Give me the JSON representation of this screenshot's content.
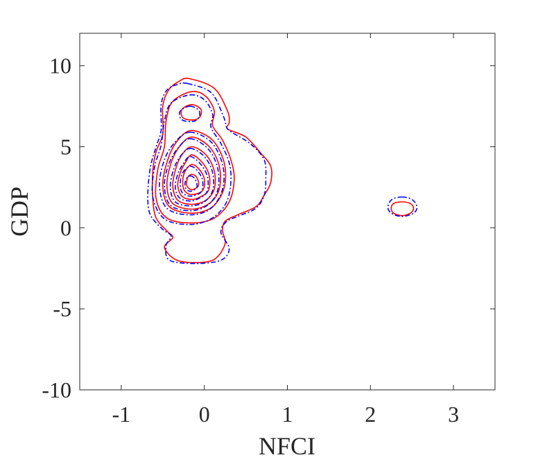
{
  "chart_data": {
    "type": "contour",
    "xlabel": "NFCI",
    "ylabel": "GDP",
    "xlim": [
      -1.5,
      3.5
    ],
    "ylim": [
      -10,
      12
    ],
    "xticks": [
      -1,
      0,
      1,
      2,
      3
    ],
    "xtick_labels": [
      "-1",
      "0",
      "1",
      "2",
      "3"
    ],
    "yticks": [
      -10,
      -5,
      0,
      5,
      10
    ],
    "ytick_labels": [
      "-10",
      "-5",
      "0",
      "5",
      "10"
    ],
    "grid": false,
    "series": [
      {
        "color": "#ff0000",
        "style": "solid",
        "contours": [
          [
            [
              -0.18,
              9.2
            ],
            [
              0.12,
              8.6
            ],
            [
              0.28,
              7.2
            ],
            [
              0.3,
              6.5
            ],
            [
              0.28,
              6.1
            ],
            [
              0.5,
              5.6
            ],
            [
              0.68,
              4.6
            ],
            [
              0.8,
              3.8
            ],
            [
              0.8,
              2.8
            ],
            [
              0.72,
              2.0
            ],
            [
              0.62,
              1.3
            ],
            [
              0.4,
              0.8
            ],
            [
              0.25,
              0.4
            ],
            [
              0.22,
              -0.2
            ],
            [
              0.25,
              -1.0
            ],
            [
              0.12,
              -1.95
            ],
            [
              -0.12,
              -2.15
            ],
            [
              -0.35,
              -1.95
            ],
            [
              -0.48,
              -1.2
            ],
            [
              -0.38,
              -0.6
            ],
            [
              -0.45,
              -0.2
            ],
            [
              -0.58,
              0.6
            ],
            [
              -0.62,
              1.8
            ],
            [
              -0.62,
              3.5
            ],
            [
              -0.58,
              4.7
            ],
            [
              -0.5,
              5.8
            ],
            [
              -0.5,
              7.5
            ],
            [
              -0.43,
              8.5
            ],
            [
              -0.3,
              9.05
            ]
          ],
          [
            [
              -0.15,
              8.4
            ],
            [
              0.02,
              8.1
            ],
            [
              0.12,
              7.2
            ],
            [
              0.1,
              6.3
            ],
            [
              0.22,
              5.4
            ],
            [
              0.32,
              4.2
            ],
            [
              0.36,
              3.0
            ],
            [
              0.3,
              1.6
            ],
            [
              0.12,
              0.6
            ],
            [
              -0.15,
              0.3
            ],
            [
              -0.45,
              0.6
            ],
            [
              -0.58,
              1.8
            ],
            [
              -0.56,
              3.6
            ],
            [
              -0.48,
              5.0
            ],
            [
              -0.46,
              6.6
            ],
            [
              -0.38,
              7.8
            ]
          ],
          [
            [
              -0.15,
              7.6
            ],
            [
              -0.04,
              7.3
            ],
            [
              -0.06,
              6.8
            ],
            [
              -0.15,
              6.65
            ],
            [
              -0.26,
              6.8
            ],
            [
              -0.27,
              7.3
            ]
          ],
          [
            [
              -0.15,
              6.0
            ],
            [
              0.1,
              5.4
            ],
            [
              0.24,
              4.0
            ],
            [
              0.24,
              2.5
            ],
            [
              0.1,
              1.3
            ],
            [
              -0.15,
              0.9
            ],
            [
              -0.42,
              1.3
            ],
            [
              -0.5,
              2.6
            ],
            [
              -0.44,
              4.2
            ],
            [
              -0.32,
              5.4
            ]
          ],
          [
            [
              -0.15,
              5.6
            ],
            [
              0.06,
              5.0
            ],
            [
              0.18,
              3.8
            ],
            [
              0.18,
              2.4
            ],
            [
              0.06,
              1.5
            ],
            [
              -0.15,
              1.15
            ],
            [
              -0.38,
              1.5
            ],
            [
              -0.45,
              2.6
            ],
            [
              -0.4,
              4.0
            ],
            [
              -0.3,
              5.0
            ]
          ],
          [
            [
              -0.15,
              5.0
            ],
            [
              0.02,
              4.5
            ],
            [
              0.12,
              3.5
            ],
            [
              0.12,
              2.4
            ],
            [
              0.02,
              1.7
            ],
            [
              -0.15,
              1.45
            ],
            [
              -0.32,
              1.7
            ],
            [
              -0.38,
              2.6
            ],
            [
              -0.34,
              3.7
            ],
            [
              -0.27,
              4.5
            ]
          ],
          [
            [
              -0.15,
              4.5
            ],
            [
              -0.02,
              4.0
            ],
            [
              0.06,
              3.2
            ],
            [
              0.05,
              2.3
            ],
            [
              -0.05,
              1.9
            ],
            [
              -0.15,
              1.75
            ],
            [
              -0.27,
              1.95
            ],
            [
              -0.32,
              2.6
            ],
            [
              -0.29,
              3.4
            ],
            [
              -0.23,
              4.0
            ]
          ],
          [
            [
              -0.15,
              3.9
            ],
            [
              -0.06,
              3.6
            ],
            [
              0.0,
              3.0
            ],
            [
              -0.02,
              2.3
            ],
            [
              -0.15,
              2.05
            ],
            [
              -0.24,
              2.3
            ],
            [
              -0.26,
              2.9
            ],
            [
              -0.23,
              3.5
            ]
          ],
          [
            [
              -0.15,
              3.3
            ],
            [
              -0.09,
              3.1
            ],
            [
              -0.07,
              2.6
            ],
            [
              -0.15,
              2.35
            ],
            [
              -0.21,
              2.6
            ],
            [
              -0.2,
              3.1
            ]
          ],
          [
            [
              2.38,
              1.6
            ],
            [
              2.48,
              1.5
            ],
            [
              2.52,
              1.2
            ],
            [
              2.48,
              0.9
            ],
            [
              2.38,
              0.75
            ],
            [
              2.28,
              0.9
            ],
            [
              2.25,
              1.2
            ],
            [
              2.28,
              1.5
            ]
          ]
        ]
      },
      {
        "color": "#0000ff",
        "style": "dashdot",
        "contours": [
          [
            [
              -0.2,
              8.9
            ],
            [
              0.08,
              8.35
            ],
            [
              0.22,
              7.0
            ],
            [
              0.26,
              6.4
            ],
            [
              0.3,
              6.0
            ],
            [
              0.55,
              5.2
            ],
            [
              0.72,
              4.2
            ],
            [
              0.74,
              3.0
            ],
            [
              0.72,
              2.0
            ],
            [
              0.62,
              1.2
            ],
            [
              0.4,
              0.7
            ],
            [
              0.26,
              0.35
            ],
            [
              0.2,
              -0.3
            ],
            [
              0.3,
              -1.3
            ],
            [
              0.2,
              -2.0
            ],
            [
              -0.1,
              -2.2
            ],
            [
              -0.42,
              -2.0
            ],
            [
              -0.46,
              -1.1
            ],
            [
              -0.4,
              -0.5
            ],
            [
              -0.5,
              -0.1
            ],
            [
              -0.65,
              0.8
            ],
            [
              -0.68,
              2.0
            ],
            [
              -0.65,
              3.7
            ],
            [
              -0.58,
              5.0
            ],
            [
              -0.52,
              6.0
            ],
            [
              -0.52,
              7.6
            ],
            [
              -0.45,
              8.5
            ],
            [
              -0.32,
              8.85
            ]
          ],
          [
            [
              -0.17,
              8.2
            ],
            [
              0.0,
              7.9
            ],
            [
              0.1,
              7.0
            ],
            [
              0.08,
              6.2
            ],
            [
              0.2,
              5.2
            ],
            [
              0.3,
              4.0
            ],
            [
              0.32,
              2.8
            ],
            [
              0.26,
              1.5
            ],
            [
              0.08,
              0.55
            ],
            [
              -0.18,
              0.2
            ],
            [
              -0.48,
              0.55
            ],
            [
              -0.62,
              1.9
            ],
            [
              -0.6,
              3.7
            ],
            [
              -0.52,
              5.1
            ],
            [
              -0.48,
              6.6
            ],
            [
              -0.4,
              7.7
            ]
          ],
          [
            [
              -0.17,
              7.5
            ],
            [
              -0.06,
              7.2
            ],
            [
              -0.08,
              6.7
            ],
            [
              -0.17,
              6.55
            ],
            [
              -0.28,
              6.7
            ],
            [
              -0.29,
              7.2
            ]
          ],
          [
            [
              -0.17,
              5.9
            ],
            [
              0.08,
              5.3
            ],
            [
              0.22,
              3.9
            ],
            [
              0.22,
              2.4
            ],
            [
              0.08,
              1.2
            ],
            [
              -0.17,
              0.8
            ],
            [
              -0.45,
              1.2
            ],
            [
              -0.54,
              2.6
            ],
            [
              -0.48,
              4.2
            ],
            [
              -0.35,
              5.3
            ]
          ],
          [
            [
              -0.17,
              5.5
            ],
            [
              0.04,
              4.9
            ],
            [
              0.16,
              3.7
            ],
            [
              0.16,
              2.3
            ],
            [
              0.04,
              1.4
            ],
            [
              -0.17,
              1.05
            ],
            [
              -0.41,
              1.4
            ],
            [
              -0.48,
              2.6
            ],
            [
              -0.43,
              3.9
            ],
            [
              -0.32,
              4.9
            ]
          ],
          [
            [
              -0.17,
              4.9
            ],
            [
              0.0,
              4.4
            ],
            [
              0.1,
              3.4
            ],
            [
              0.1,
              2.3
            ],
            [
              0.0,
              1.6
            ],
            [
              -0.17,
              1.35
            ],
            [
              -0.35,
              1.6
            ],
            [
              -0.41,
              2.5
            ],
            [
              -0.37,
              3.6
            ],
            [
              -0.29,
              4.4
            ]
          ],
          [
            [
              -0.17,
              4.4
            ],
            [
              -0.04,
              3.9
            ],
            [
              0.04,
              3.1
            ],
            [
              0.03,
              2.2
            ],
            [
              -0.07,
              1.8
            ],
            [
              -0.17,
              1.65
            ],
            [
              -0.3,
              1.85
            ],
            [
              -0.35,
              2.5
            ],
            [
              -0.32,
              3.3
            ],
            [
              -0.26,
              3.9
            ]
          ],
          [
            [
              -0.17,
              3.8
            ],
            [
              -0.08,
              3.5
            ],
            [
              -0.02,
              2.9
            ],
            [
              -0.04,
              2.2
            ],
            [
              -0.17,
              1.95
            ],
            [
              -0.27,
              2.2
            ],
            [
              -0.29,
              2.8
            ],
            [
              -0.26,
              3.4
            ]
          ],
          [
            [
              -0.17,
              3.2
            ],
            [
              -0.11,
              3.0
            ],
            [
              -0.09,
              2.5
            ],
            [
              -0.17,
              2.25
            ],
            [
              -0.23,
              2.5
            ],
            [
              -0.22,
              3.0
            ]
          ],
          [
            [
              2.38,
              1.9
            ],
            [
              2.5,
              1.75
            ],
            [
              2.56,
              1.3
            ],
            [
              2.52,
              0.9
            ],
            [
              2.38,
              0.7
            ],
            [
              2.25,
              0.9
            ],
            [
              2.21,
              1.3
            ],
            [
              2.26,
              1.75
            ]
          ]
        ]
      }
    ]
  }
}
